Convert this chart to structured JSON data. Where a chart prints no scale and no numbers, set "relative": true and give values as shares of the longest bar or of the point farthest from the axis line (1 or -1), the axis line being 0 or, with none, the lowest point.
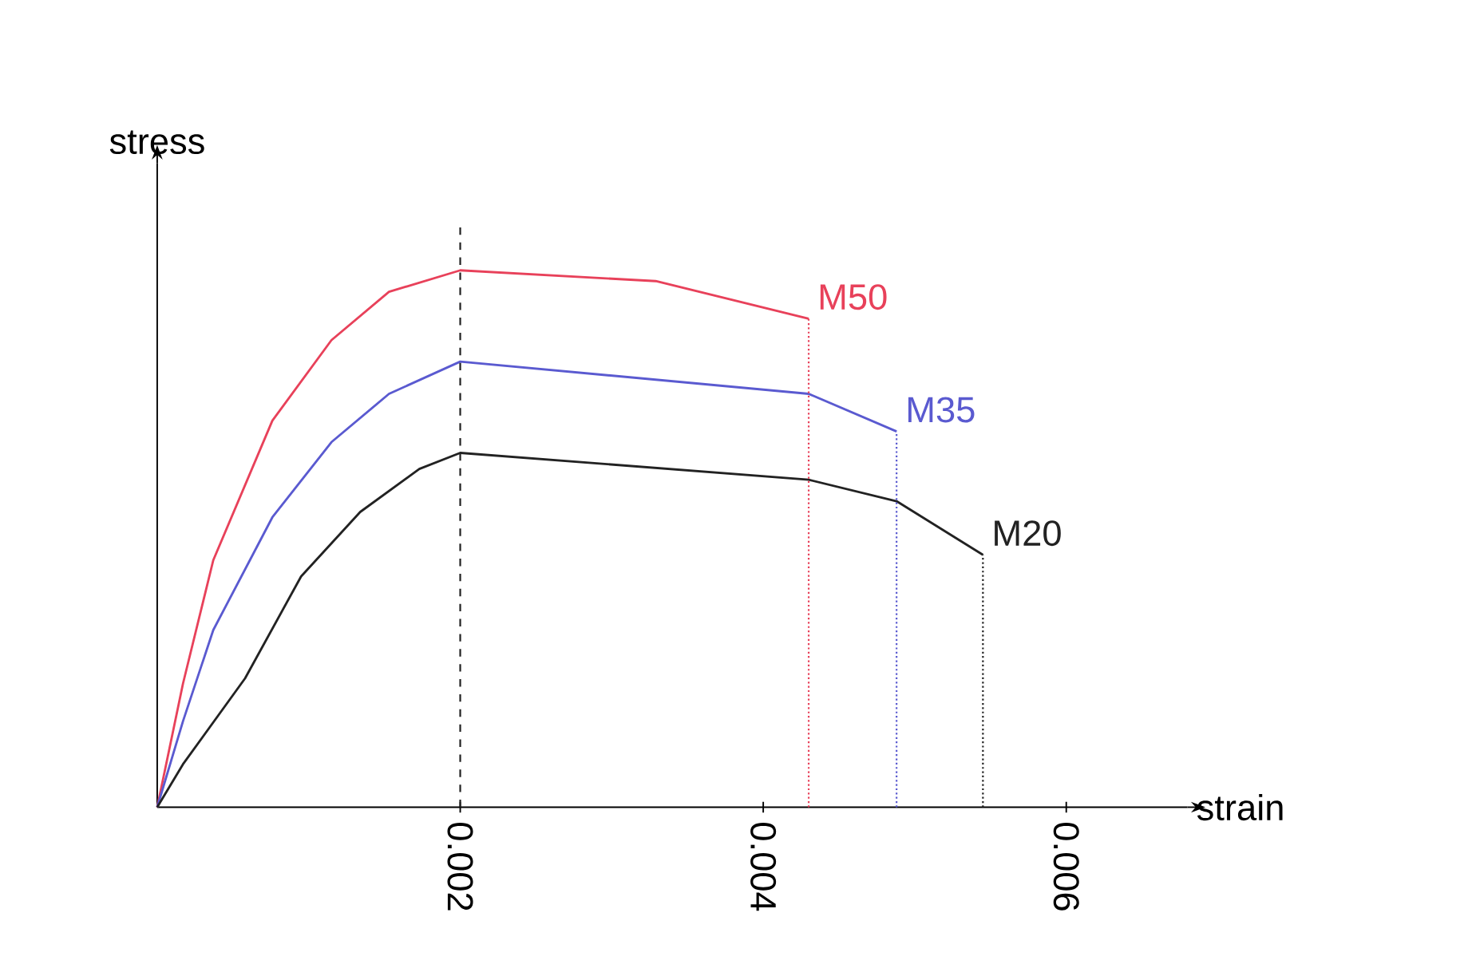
{
  "chart_data": {
    "type": "line",
    "xlabel": "strain",
    "ylabel": "stress",
    "relative": true,
    "xlim": [
      0,
      0.0068
    ],
    "xticks": [
      0.002,
      0.004,
      0.006
    ],
    "series": [
      {
        "name": "M50",
        "color": "#e8415a",
        "x": [
          0,
          0.00017,
          0.00037,
          0.00076,
          0.00115,
          0.00153,
          0.002,
          0.00329,
          0.0043
        ],
        "values": [
          0,
          0.23,
          0.46,
          0.72,
          0.87,
          0.96,
          1,
          0.98,
          0.91
        ]
      },
      {
        "name": "M35",
        "color": "#5a5ad0",
        "x": [
          0,
          0.00017,
          0.00037,
          0.00076,
          0.00115,
          0.00153,
          0.002,
          0.0043,
          0.00488
        ],
        "values": [
          0,
          0.16,
          0.33,
          0.54,
          0.68,
          0.77,
          0.83,
          0.77,
          0.7
        ]
      },
      {
        "name": "M20",
        "color": "#222222",
        "x": [
          0,
          0.00017,
          0.00058,
          0.00095,
          0.00134,
          0.00173,
          0.002,
          0.0043,
          0.00488,
          0.00545
        ],
        "values": [
          0,
          0.08,
          0.24,
          0.43,
          0.55,
          0.63,
          0.66,
          0.61,
          0.57,
          0.47
        ]
      }
    ],
    "ref_lines": [
      {
        "axis": "x",
        "value": 0.002,
        "color": "#222222",
        "line_style": "dashed"
      },
      {
        "axis": "x",
        "value": 0.0043,
        "color": "#e8415a",
        "line_style": "dotted"
      },
      {
        "axis": "x",
        "value": 0.00488,
        "color": "#5a5ad0",
        "line_style": "dotted"
      },
      {
        "axis": "x",
        "value": 0.00545,
        "color": "#222222",
        "line_style": "dotted"
      }
    ],
    "grid": false,
    "marker": "none",
    "line_style": "solid"
  }
}
